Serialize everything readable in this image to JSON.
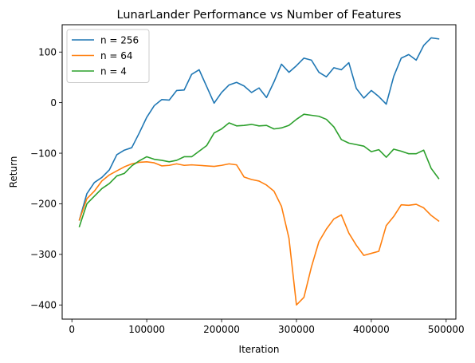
{
  "chart_data": {
    "type": "line",
    "title": "LunarLander Performance vs Number of Features",
    "xlabel": "Iteration",
    "ylabel": "Return",
    "xlim": [
      -13000,
      513000
    ],
    "ylim": [
      -428,
      154
    ],
    "xticks": [
      0,
      100000,
      200000,
      300000,
      400000,
      500000
    ],
    "yticks": [
      -400,
      -300,
      -200,
      -100,
      0,
      100
    ],
    "grid": false,
    "legend_position": "top-left",
    "x": [
      10000,
      20000,
      30000,
      40000,
      50000,
      60000,
      70000,
      80000,
      90000,
      100000,
      110000,
      120000,
      130000,
      140000,
      150000,
      160000,
      170000,
      180000,
      190000,
      200000,
      210000,
      220000,
      230000,
      240000,
      250000,
      260000,
      270000,
      280000,
      290000,
      300000,
      310000,
      320000,
      330000,
      340000,
      350000,
      360000,
      370000,
      380000,
      390000,
      400000,
      410000,
      420000,
      430000,
      440000,
      450000,
      460000,
      470000,
      480000,
      490000
    ],
    "series": [
      {
        "name": "n = 256",
        "color": "#1f77b4",
        "values": [
          -232,
          -180,
          -158,
          -148,
          -133,
          -103,
          -94,
          -89,
          -60,
          -29,
          -6,
          6,
          5,
          24,
          25,
          56,
          65,
          32,
          -1,
          20,
          35,
          40,
          33,
          20,
          29,
          10,
          41,
          76,
          60,
          73,
          88,
          84,
          60,
          51,
          69,
          65,
          79,
          28,
          9,
          24,
          12,
          -3,
          52,
          88,
          95,
          84,
          113,
          128,
          126
        ]
      },
      {
        "name": "n = 64",
        "color": "#ff7f0e",
        "values": [
          -232,
          -190,
          -175,
          -155,
          -143,
          -135,
          -127,
          -121,
          -118,
          -117,
          -119,
          -125,
          -124,
          -121,
          -124,
          -123,
          -124,
          -125,
          -126,
          -124,
          -121,
          -123,
          -147,
          -152,
          -155,
          -163,
          -175,
          -205,
          -268,
          -400,
          -385,
          -325,
          -275,
          -250,
          -230,
          -222,
          -258,
          -282,
          -302,
          -298,
          -294,
          -243,
          -225,
          -202,
          -203,
          -201,
          -208,
          -223,
          -234
        ]
      },
      {
        "name": "n = 4",
        "color": "#2ca02c",
        "values": [
          -245,
          -200,
          -185,
          -170,
          -160,
          -145,
          -140,
          -125,
          -115,
          -107,
          -112,
          -114,
          -117,
          -114,
          -107,
          -107,
          -96,
          -85,
          -60,
          -52,
          -40,
          -46,
          -45,
          -43,
          -46,
          -45,
          -52,
          -50,
          -45,
          -33,
          -23,
          -25,
          -27,
          -33,
          -48,
          -73,
          -80,
          -83,
          -86,
          -97,
          -93,
          -108,
          -92,
          -96,
          -101,
          -101,
          -94,
          -130,
          -150
        ]
      }
    ]
  }
}
